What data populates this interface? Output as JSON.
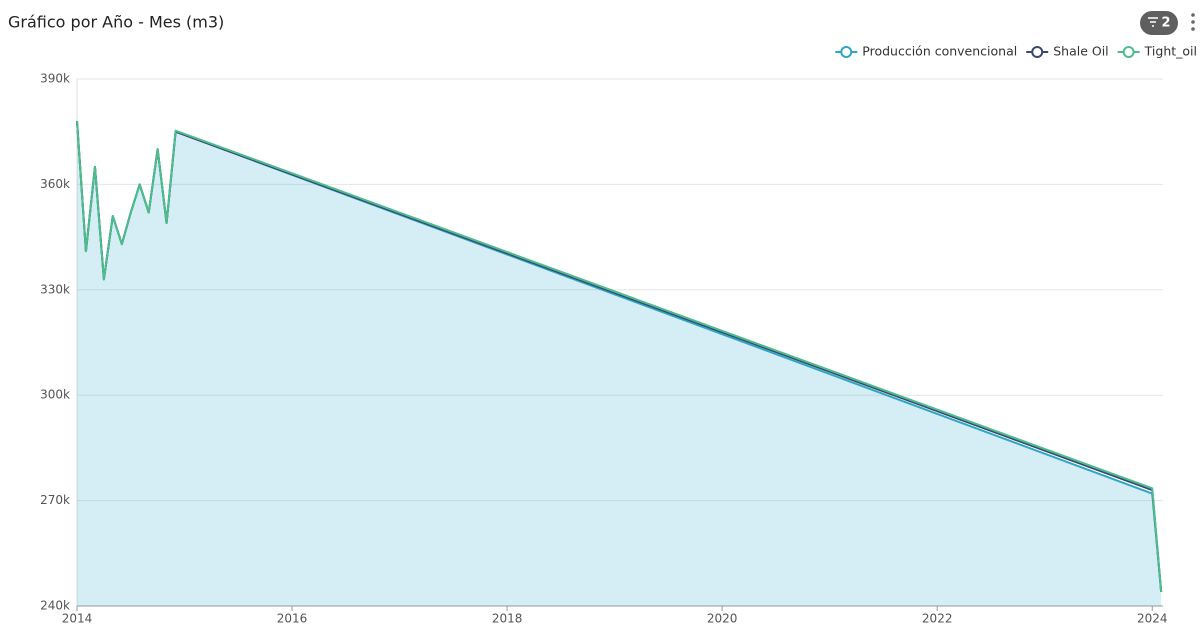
{
  "toolbar": {
    "filter_count": "2"
  },
  "chart_data": {
    "type": "line",
    "title": "Gráfico por Año - Mes (m3)",
    "x": [
      2014,
      2014.083,
      2014.167,
      2014.25,
      2014.333,
      2014.417,
      2014.5,
      2014.583,
      2014.667,
      2014.75,
      2014.833,
      2014.917,
      2024,
      2024.083
    ],
    "xlim": [
      2014,
      2024.1
    ],
    "xticks": [
      2014,
      2016,
      2018,
      2020,
      2022,
      2024
    ],
    "ylim": [
      240000,
      390000
    ],
    "yticks": [
      {
        "value": 240000,
        "label": "240k"
      },
      {
        "value": 270000,
        "label": "270k"
      },
      {
        "value": 300000,
        "label": "300k"
      },
      {
        "value": 330000,
        "label": "330k"
      },
      {
        "value": 360000,
        "label": "360k"
      },
      {
        "value": 390000,
        "label": "390k"
      }
    ],
    "grid": true,
    "legend": "top-right",
    "series": [
      {
        "name": "Producción convencional",
        "color": "#2ea6c6",
        "area": true,
        "values": [
          378000,
          341000,
          365000,
          333000,
          351000,
          343000,
          352000,
          360000,
          352000,
          370000,
          349000,
          375000,
          272000,
          244000
        ]
      },
      {
        "name": "Shale Oil",
        "color": "#3b4773",
        "values": [
          378000,
          341000,
          365000,
          333000,
          351000,
          343000,
          352000,
          360000,
          352000,
          370000,
          349000,
          375000,
          273000,
          244000
        ]
      },
      {
        "name": "Tight_oil",
        "color": "#4dbd8b",
        "values": [
          378000,
          341000,
          365000,
          333000,
          351000,
          343000,
          352000,
          360000,
          352000,
          370000,
          349000,
          375300,
          273500,
          244000
        ]
      }
    ]
  }
}
